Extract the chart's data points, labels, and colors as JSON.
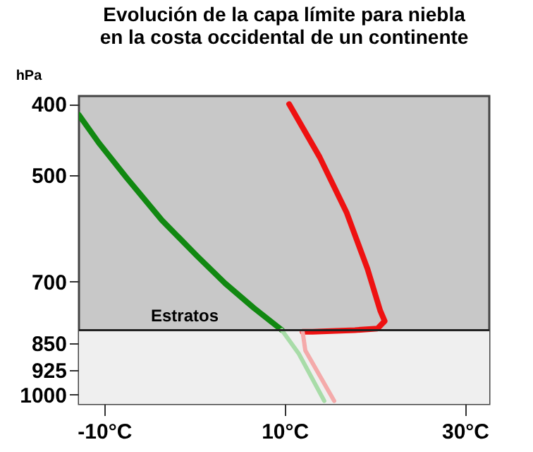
{
  "chart_data": {
    "type": "line",
    "title": "Evolución de la capa límite para niebla\nen la costa occidental de un continente",
    "ylabel": "hPa",
    "log": "y",
    "grid": false,
    "xlim": [
      -12.8,
      32.7
    ],
    "ylim": [
      1030,
      390
    ],
    "xticks": [
      {
        "value": -10,
        "label": "-10°C"
      },
      {
        "value": 10,
        "label": "10°C"
      },
      {
        "value": 30,
        "label": "30°C"
      }
    ],
    "yticks": [
      400,
      500,
      700,
      850,
      925,
      1000
    ],
    "series": [
      {
        "color": "#ee1111",
        "x": [
          10.5,
          13.9,
          16.9,
          19.2,
          20.6,
          21.1,
          20.3,
          17.8,
          13.1,
          12.0
        ],
        "values": [
          400,
          473,
          564,
          673,
          767,
          793,
          812,
          816,
          820,
          820
        ]
      },
      {
        "color": "#f4aaaa",
        "x": [
          12.0,
          12.3,
          15.5
        ],
        "values": [
          820,
          870,
          1020
        ]
      },
      {
        "color": "#118811",
        "x": [
          -12.8,
          -10.6,
          -7.5,
          -3.6,
          0.3,
          3.4,
          6.6,
          9.7
        ],
        "values": [
          414,
          452,
          505,
          577,
          646,
          704,
          761,
          816
        ]
      },
      {
        "color": "#a8dca8",
        "x": [
          9.7,
          11.6,
          14.4
        ],
        "values": [
          816,
          880,
          1020
        ]
      }
    ],
    "ref_lines": [
      {
        "axis": "y",
        "value": 816,
        "label": "Estratos",
        "color": "#222222"
      }
    ],
    "bands": [
      {
        "axis": "y",
        "from": 816,
        "to": 1030,
        "color": "#efefef"
      }
    ]
  }
}
